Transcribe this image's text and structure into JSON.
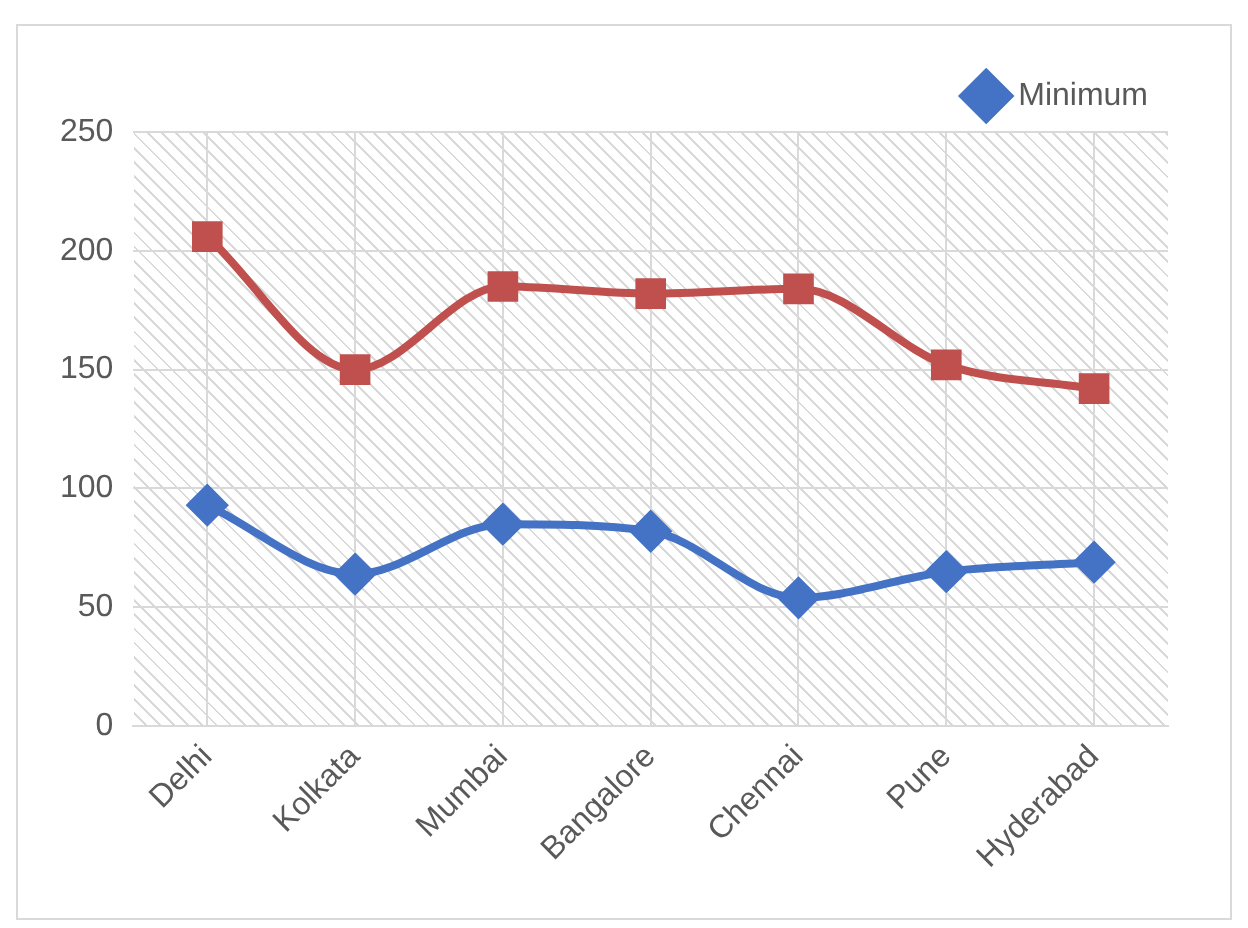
{
  "chart_data": {
    "type": "line",
    "categories": [
      "Delhi",
      "Kolkata",
      "Mumbai",
      "Bangalore",
      "Chennai",
      "Pune",
      "Hyderabad"
    ],
    "series": [
      {
        "name": "Minimum",
        "color": "#4472c4",
        "marker": "diamond",
        "values": [
          93,
          64,
          85,
          82,
          54,
          65,
          69
        ]
      },
      {
        "color": "#c0504d",
        "marker": "square",
        "values": [
          206,
          150,
          185,
          182,
          184,
          152,
          142
        ]
      }
    ],
    "ylim": [
      0,
      250
    ],
    "yticks": [
      0,
      50,
      100,
      150,
      200,
      250
    ],
    "grid": true,
    "legend": "top right"
  }
}
